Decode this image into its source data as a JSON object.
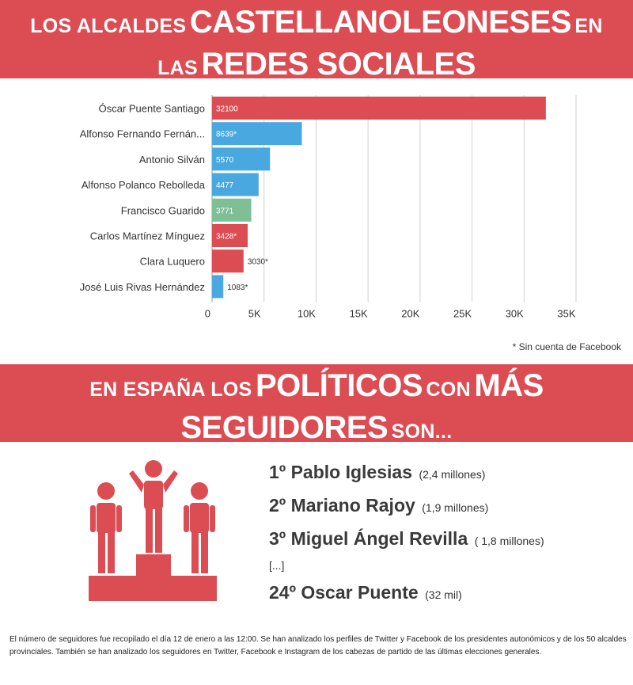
{
  "header": {
    "line1_a": "Los alcaldes",
    "line1_b": "castellanoleoneses",
    "line1_c": "en",
    "line2_a": "las",
    "line2_b": "redes sociales"
  },
  "chart_data": {
    "type": "bar",
    "orientation": "horizontal",
    "title": "",
    "xlabel": "",
    "ylabel": "",
    "categories": [
      "Óscar Puente Santiago",
      "Alfonso Fernando Fernán...",
      "Antonio Silván",
      "Alfonso Polanco Rebolleda",
      "Francisco Guarido",
      "Carlos Martínez Mínguez",
      "Clara Luquero",
      "José Luis Rivas Hernández"
    ],
    "values": [
      32100,
      8639,
      5570,
      4477,
      3771,
      3428,
      3030,
      1083
    ],
    "value_labels": [
      "32100",
      "8639*",
      "5570",
      "4477",
      "3771",
      "3428*",
      "3030*",
      "1083*"
    ],
    "colors": [
      "#dc4c53",
      "#4aa8e0",
      "#4aa8e0",
      "#4aa8e0",
      "#7fbf96",
      "#dc4c53",
      "#dc4c53",
      "#4aa8e0"
    ],
    "xlim": [
      0,
      35000
    ],
    "xticks": [
      0,
      5000,
      10000,
      15000,
      20000,
      25000,
      30000,
      35000
    ],
    "xtick_labels": [
      "0",
      "5K",
      "10K",
      "15K",
      "20K",
      "25K",
      "30K",
      "35K"
    ],
    "grid": true
  },
  "footnote": "* Sin cuenta de Facebook",
  "banner2": {
    "line1_a": "En España los",
    "line1_b": "políticos",
    "line1_c": "con",
    "line1_d": "más",
    "line2_a": "seguidores",
    "line2_b": "son..."
  },
  "ranking": [
    {
      "main": "1º Pablo Iglesias",
      "sub": "(2,4 millones)"
    },
    {
      "main": "2º Mariano Rajoy",
      "sub": "(1,9 millones)"
    },
    {
      "main": "3º Miguel Ángel Revilla",
      "sub": "( 1,8 millones)"
    }
  ],
  "ellipsis": "[...]",
  "ranking_last": {
    "main": "24º Oscar Puente",
    "sub": "(32 mil)"
  },
  "note": "El número de seguidores fue recopilado el día 12 de enero a las 12:00. Se han analizado los perfiles de Twitter y Facebook de los presidentes autonómicos y de los 50 alcaldes provinciales. También se han analizado los seguidores en Twitter, Facebook e Instagram de los cabezas de partido de las últimas elecciones generales.",
  "icons": {
    "podium": "podium-icon"
  },
  "colors": {
    "accent": "#dc4c53",
    "blue": "#4aa8e0",
    "green": "#7fbf96"
  }
}
